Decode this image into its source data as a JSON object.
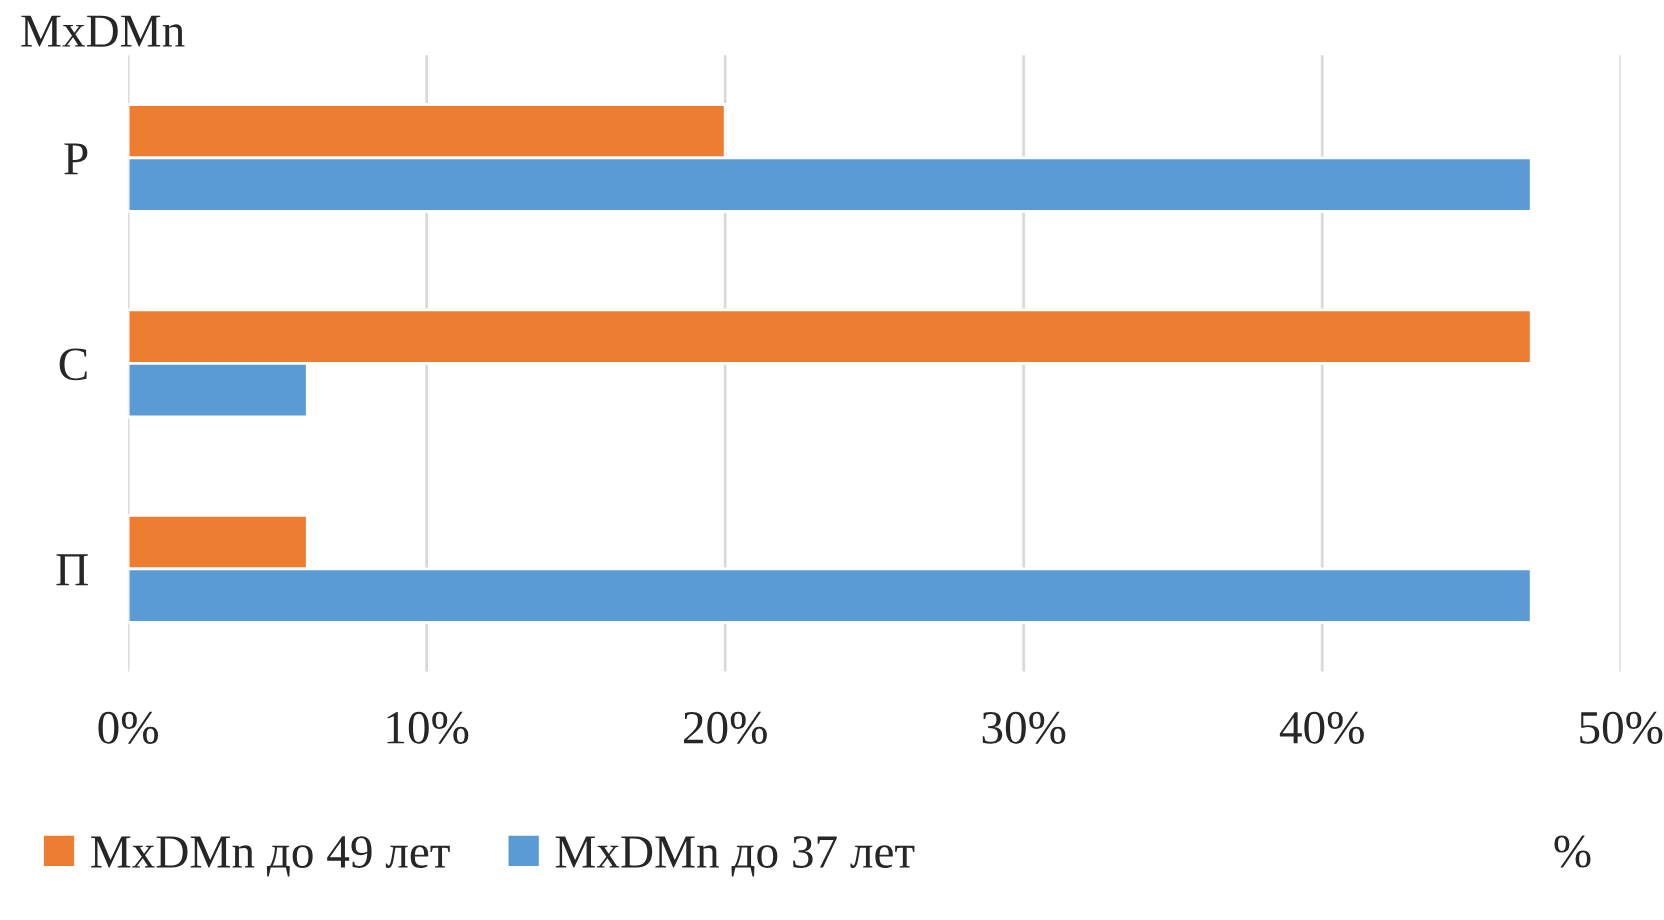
{
  "chart_data": {
    "type": "bar",
    "orientation": "horizontal",
    "categories": [
      "Р",
      "С",
      "П"
    ],
    "ylabel": "MxDMn",
    "xlabel": "%",
    "series": [
      {
        "name": "MxDMn до 49 лет",
        "color": "#ed7d31",
        "values": [
          20,
          47,
          6
        ]
      },
      {
        "name": "MxDMn до 37 лет",
        "color": "#5b9bd5",
        "values": [
          47,
          6,
          47
        ]
      }
    ],
    "xlim": [
      0,
      50
    ],
    "xticks": [
      {
        "value": 0,
        "label": "0%"
      },
      {
        "value": 10,
        "label": "10%"
      },
      {
        "value": 20,
        "label": "20%"
      },
      {
        "value": 30,
        "label": "30%"
      },
      {
        "value": 40,
        "label": "40%"
      },
      {
        "value": 50,
        "label": "50%"
      }
    ],
    "grid": "x",
    "legend": "bottom left"
  }
}
